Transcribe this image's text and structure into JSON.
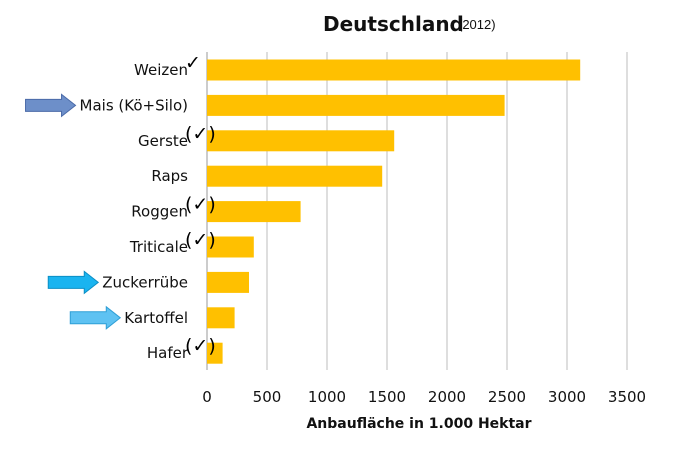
{
  "chart_data": {
    "type": "bar",
    "orientation": "horizontal",
    "title": "Deutschland",
    "subtitle": "(2012)",
    "xlabel": "Anbaufläche in 1.000 Hektar",
    "ylabel": "",
    "xlim": [
      0,
      3500
    ],
    "xticks": [
      0,
      500,
      1000,
      1500,
      2000,
      2500,
      3000,
      3500
    ],
    "grid": "vertical",
    "legend": "none",
    "bar_color": "#FFC000",
    "grid_color": "#bdbdbd",
    "categories": [
      "Weizen",
      "Mais (Kö+Silo)",
      "Gerste",
      "Raps",
      "Roggen",
      "Triticale",
      "Zuckerrübe",
      "Kartoffel",
      "Hafer"
    ],
    "values": [
      3110,
      2480,
      1560,
      1460,
      780,
      390,
      350,
      230,
      130
    ],
    "annotations": [
      {
        "category": "Weizen",
        "mark": "✓"
      },
      {
        "category": "Gerste",
        "mark": "(✓)"
      },
      {
        "category": "Roggen",
        "mark": "(✓)"
      },
      {
        "category": "Triticale",
        "mark": "(✓)"
      },
      {
        "category": "Hafer",
        "mark": "(✓)"
      }
    ],
    "arrows": [
      {
        "category": "Mais (Kö+Silo)",
        "color": "#6d8fc9",
        "stroke": "#4a6aa8"
      },
      {
        "category": "Zuckerrübe",
        "color": "#1ab4f0",
        "stroke": "#0b8ec4"
      },
      {
        "category": "Kartoffel",
        "color": "#5ec2f2",
        "stroke": "#2f9fd6"
      }
    ]
  }
}
